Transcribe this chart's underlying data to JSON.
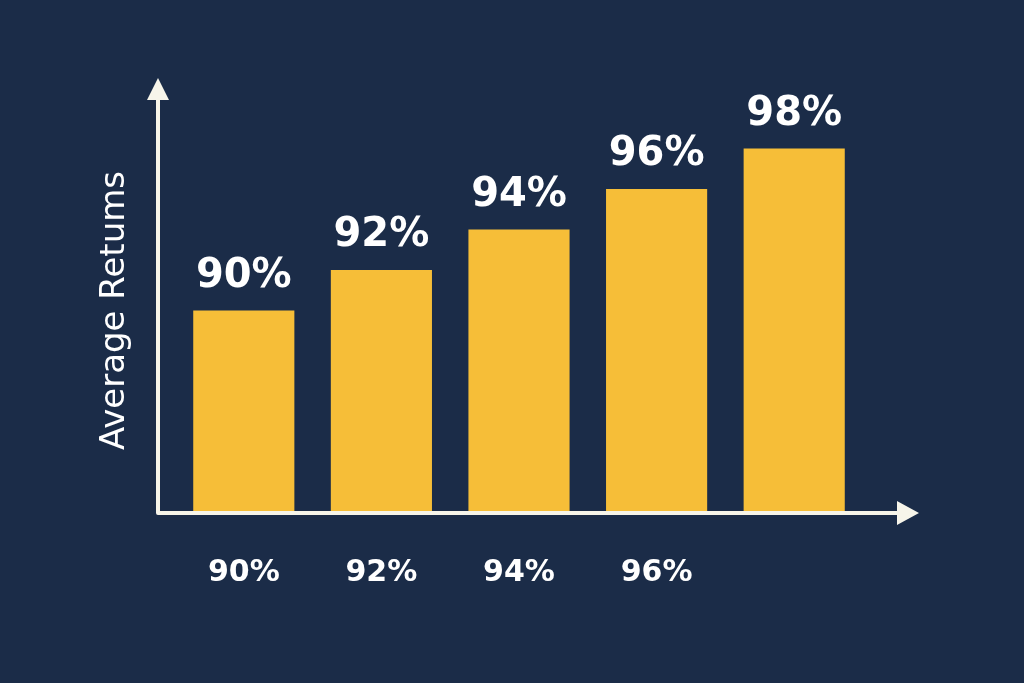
{
  "chart_data": {
    "type": "bar",
    "ylabel": "Average Retums",
    "categories": [
      "90%",
      "92%",
      "94%",
      "96%",
      null
    ],
    "values": [
      90,
      92,
      94,
      96,
      98
    ],
    "color": "#f6be38",
    "value_labels": [
      "90%",
      "92%",
      "94%",
      "96%",
      "98%"
    ],
    "ylim": [
      80,
      100
    ],
    "tick_labels": "x",
    "grid": false,
    "legend": false
  }
}
